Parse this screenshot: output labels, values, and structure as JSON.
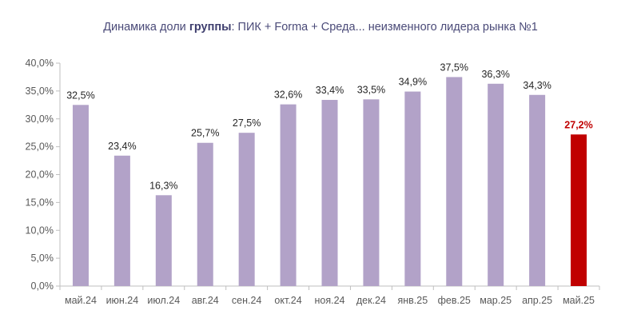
{
  "title": {
    "prefix": "Динамика доли ",
    "bold": "группы",
    "suffix": ": ПИК + Forma + Среда... неизменного лидера рынка №1"
  },
  "colors": {
    "bar": "#b2a2c8",
    "highlight": "#c00000",
    "axis_text": "#595959",
    "axis_line": "#bfbfbf",
    "label_text": "#262626"
  },
  "chart_data": {
    "type": "bar",
    "title": "Динамика доли группы: ПИК + Forma + Среда... неизменного лидера рынка №1",
    "categories": [
      "май.24",
      "июн.24",
      "июл.24",
      "авг.24",
      "сен.24",
      "окт.24",
      "ноя.24",
      "дек.24",
      "янв.25",
      "фев.25",
      "мар.25",
      "апр.25",
      "май.25"
    ],
    "values": [
      32.5,
      23.4,
      16.3,
      25.7,
      27.5,
      32.6,
      33.4,
      33.5,
      34.9,
      37.5,
      36.3,
      34.3,
      27.2
    ],
    "data_labels": [
      "32,5%",
      "23,4%",
      "16,3%",
      "25,7%",
      "27,5%",
      "32,6%",
      "33,4%",
      "33,5%",
      "34,9%",
      "37,5%",
      "36,3%",
      "34,3%",
      "27,2%"
    ],
    "highlight_index": 12,
    "ylim": [
      0,
      40
    ],
    "yticks": [
      0,
      5,
      10,
      15,
      20,
      25,
      30,
      35,
      40
    ],
    "ytick_labels": [
      "0,0%",
      "5,0%",
      "10,0%",
      "15,0%",
      "20,0%",
      "25,0%",
      "30,0%",
      "35,0%",
      "40,0%"
    ],
    "xlabel": "",
    "ylabel": "",
    "grid": false,
    "legend": false
  }
}
